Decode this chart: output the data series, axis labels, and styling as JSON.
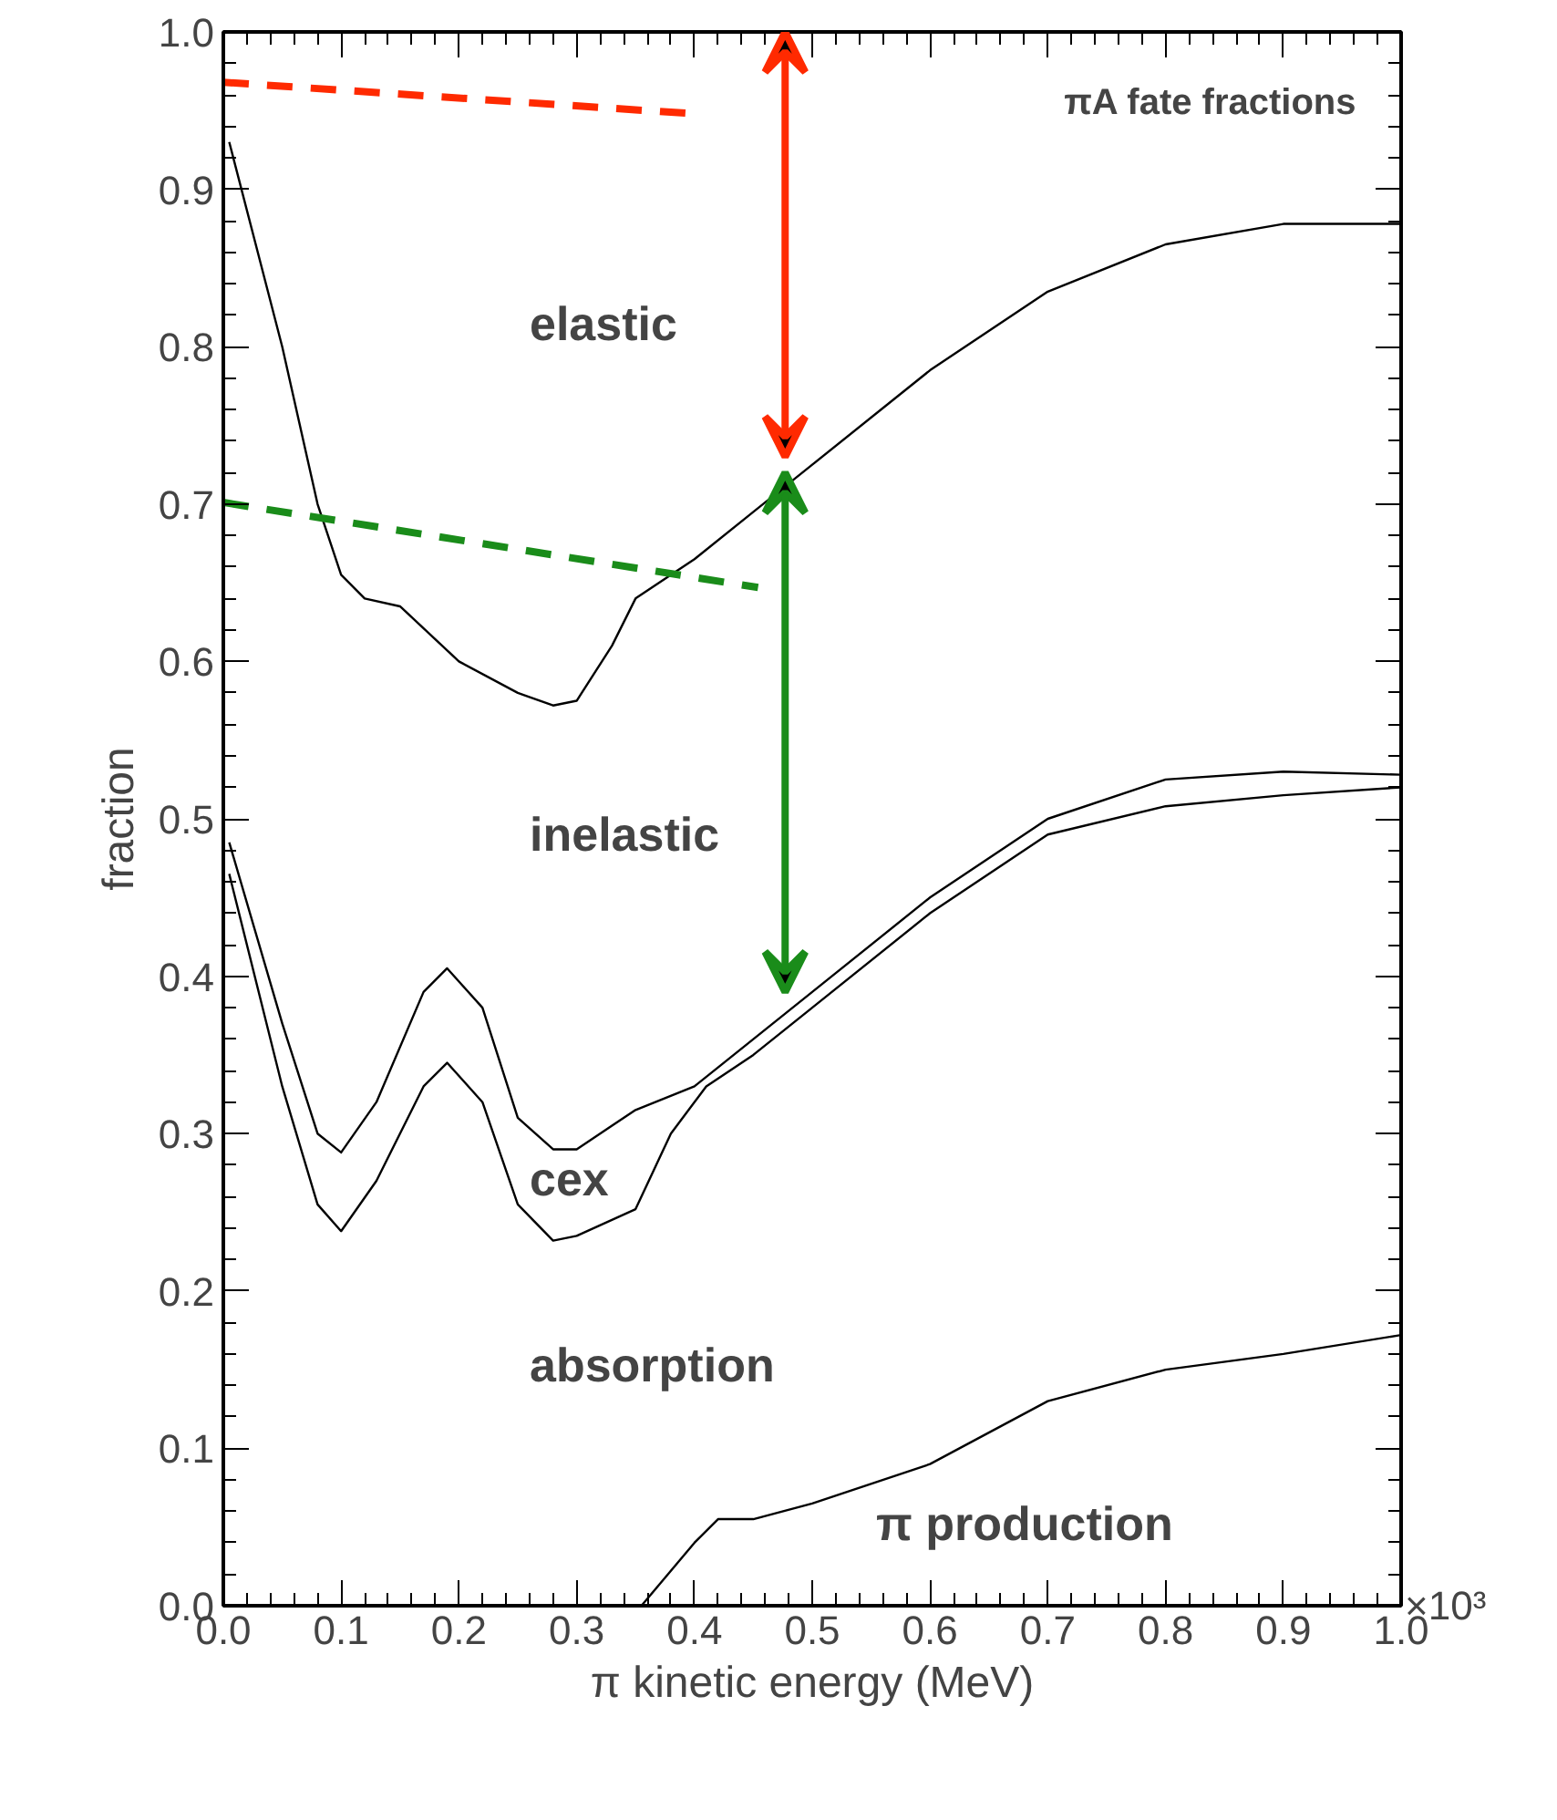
{
  "chart_data": {
    "type": "line",
    "title": "πA fate fractions",
    "xlabel": "π kinetic energy (MeV)",
    "ylabel": "fraction",
    "xlim": [
      0,
      1
    ],
    "ylim": [
      0,
      1
    ],
    "xticks": [
      {
        "value": 0,
        "label": "0.0"
      },
      {
        "value": 0.1,
        "label": "0.1"
      },
      {
        "value": 0.2,
        "label": "0.2"
      },
      {
        "value": 0.3,
        "label": "0.3"
      },
      {
        "value": 0.4,
        "label": "0.4"
      },
      {
        "value": 0.5,
        "label": "0.5"
      },
      {
        "value": 0.6,
        "label": "0.6"
      },
      {
        "value": 0.7,
        "label": "0.7"
      },
      {
        "value": 0.8,
        "label": "0.8"
      },
      {
        "value": 0.9,
        "label": "0.9"
      },
      {
        "value": 1,
        "label": "1.0"
      }
    ],
    "yticks": [
      {
        "value": 0,
        "label": "0.0"
      },
      {
        "value": 0.1,
        "label": "0.1"
      },
      {
        "value": 0.2,
        "label": "0.2"
      },
      {
        "value": 0.3,
        "label": "0.3"
      },
      {
        "value": 0.4,
        "label": "0.4"
      },
      {
        "value": 0.5,
        "label": "0.5"
      },
      {
        "value": 0.6,
        "label": "0.6"
      },
      {
        "value": 0.7,
        "label": "0.7"
      },
      {
        "value": 0.8,
        "label": "0.8"
      },
      {
        "value": 0.9,
        "label": "0.9"
      },
      {
        "value": 1,
        "label": "1.0"
      }
    ],
    "series": [
      {
        "color": "#000000",
        "x": [
          0.005,
          0.05,
          0.08,
          0.1,
          0.12,
          0.15,
          0.2,
          0.25,
          0.28,
          0.3,
          0.33,
          0.35,
          0.4,
          0.45,
          0.5,
          0.6,
          0.7,
          0.8,
          0.9,
          1.0
        ],
        "values": [
          0.93,
          0.8,
          0.7,
          0.655,
          0.64,
          0.635,
          0.6,
          0.58,
          0.572,
          0.575,
          0.61,
          0.64,
          0.665,
          0.695,
          0.725,
          0.785,
          0.835,
          0.865,
          0.878,
          0.878
        ]
      },
      {
        "color": "#000000",
        "x": [
          0.005,
          0.05,
          0.08,
          0.1,
          0.13,
          0.17,
          0.19,
          0.22,
          0.25,
          0.28,
          0.3,
          0.33,
          0.35,
          0.4,
          0.45,
          0.5,
          0.6,
          0.7,
          0.8,
          0.9,
          1.0
        ],
        "values": [
          0.485,
          0.37,
          0.3,
          0.288,
          0.32,
          0.39,
          0.405,
          0.38,
          0.31,
          0.29,
          0.29,
          0.305,
          0.315,
          0.33,
          0.36,
          0.39,
          0.45,
          0.5,
          0.525,
          0.53,
          0.528
        ]
      },
      {
        "color": "#000000",
        "x": [
          0.005,
          0.05,
          0.08,
          0.1,
          0.13,
          0.17,
          0.19,
          0.22,
          0.25,
          0.28,
          0.3,
          0.35,
          0.38,
          0.41,
          0.45,
          0.5,
          0.6,
          0.7,
          0.8,
          0.9,
          1.0
        ],
        "values": [
          0.465,
          0.33,
          0.255,
          0.238,
          0.27,
          0.33,
          0.345,
          0.32,
          0.255,
          0.232,
          0.235,
          0.252,
          0.3,
          0.33,
          0.35,
          0.38,
          0.44,
          0.49,
          0.508,
          0.515,
          0.52
        ]
      },
      {
        "color": "#ff2a00",
        "line_style": "dashed",
        "x": [
          0.0,
          0.4
        ],
        "values": [
          0.968,
          0.948
        ]
      },
      {
        "color": "#1a8c1a",
        "line_style": "dashed",
        "x": [
          0.0,
          0.454
        ],
        "values": [
          0.701,
          0.647
        ]
      },
      {
        "color": "#000000",
        "x": [
          0.355,
          0.4,
          0.42,
          0.45,
          0.5,
          0.6,
          0.7,
          0.8,
          0.9,
          1.0
        ],
        "values": [
          0.0,
          0.04,
          0.055,
          0.055,
          0.065,
          0.09,
          0.13,
          0.15,
          0.16,
          0.172
        ]
      }
    ],
    "annotations": [
      "elastic",
      "inelastic",
      "cex",
      "absorption",
      "π production",
      "×10³"
    ],
    "line_style": "solid",
    "marker": "none",
    "grid": false
  }
}
